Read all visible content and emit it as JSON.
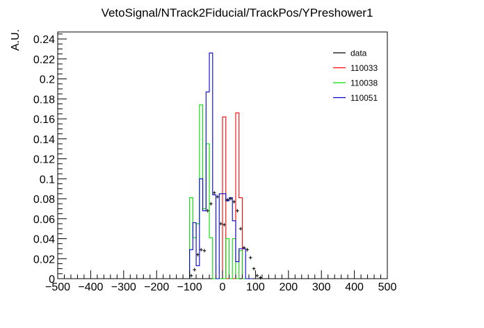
{
  "chart_data": {
    "type": "histogram",
    "title": "VetoSignal/NTrack2Fiducial/TrackPos/YPreshower1",
    "xlabel": "",
    "ylabel": "A.U.",
    "xlim": [
      -500,
      500
    ],
    "ylim": [
      0,
      0.247
    ],
    "x_ticks": [
      -500,
      -400,
      -300,
      -200,
      -100,
      0,
      100,
      200,
      300,
      400,
      500
    ],
    "x_tick_labels": [
      "−500",
      "−400",
      "−300",
      "−200",
      "−100",
      "0",
      "100",
      "200",
      "300",
      "400",
      "500"
    ],
    "y_ticks": [
      0,
      0.02,
      0.04,
      0.06,
      0.08,
      0.1,
      0.12,
      0.14,
      0.16,
      0.18,
      0.2,
      0.22,
      0.24
    ],
    "y_tick_labels": [
      "0",
      "0.02",
      "0.04",
      "0.06",
      "0.08",
      "0.1",
      "0.12",
      "0.14",
      "0.16",
      "0.18",
      "0.2",
      "0.22",
      "0.24"
    ],
    "bin_width": 10,
    "legend_position": "top-right",
    "grid": false,
    "series": [
      {
        "name": "data",
        "style": "points",
        "color": "#000000",
        "x": [
          -95,
          -85,
          -75,
          -65,
          -55,
          -45,
          -35,
          -25,
          -15,
          -5,
          5,
          15,
          25,
          35,
          45,
          55,
          65,
          75,
          85,
          95,
          105,
          115
        ],
        "y": [
          0.003,
          0.009,
          0.024,
          0.029,
          0.028,
          0.068,
          0.075,
          0.086,
          0.082,
          0.055,
          0.054,
          0.079,
          0.08,
          0.077,
          0.068,
          0.05,
          0.031,
          0.029,
          0.021,
          0.01,
          0.003,
          0.001
        ]
      },
      {
        "name": "110033",
        "style": "step",
        "color": "#ff0000",
        "bin_edges": [
          0,
          10,
          20,
          30,
          40,
          50,
          60,
          70
        ],
        "values": [
          0.162,
          0,
          0,
          0,
          0.166,
          0.081,
          0
        ]
      },
      {
        "name": "110038",
        "style": "step",
        "color": "#00dd00",
        "bin_edges": [
          -100,
          -90,
          -80,
          -70,
          -60,
          -50,
          -40,
          -30,
          -20,
          -10,
          0,
          10,
          20,
          30,
          40,
          50,
          60,
          70
        ],
        "values": [
          0.081,
          0.041,
          0.055,
          0.174,
          0.07,
          0.135,
          0.041,
          0,
          0,
          0,
          0,
          0.04,
          0,
          0.04,
          0,
          0.028,
          0
        ]
      },
      {
        "name": "110051",
        "style": "step",
        "color": "#0000cc",
        "bin_edges": [
          -100,
          -90,
          -80,
          -70,
          -60,
          -50,
          -40,
          -30,
          -20,
          -10,
          0,
          10,
          20,
          30,
          40,
          50,
          60,
          70,
          80,
          90
        ],
        "values": [
          0.029,
          0.056,
          0.013,
          0.1,
          0.068,
          0.187,
          0.226,
          0.084,
          0,
          0.085,
          0.085,
          0.078,
          0.081,
          0.058,
          0.017,
          0.03,
          0.03,
          0,
          0
        ]
      }
    ]
  }
}
